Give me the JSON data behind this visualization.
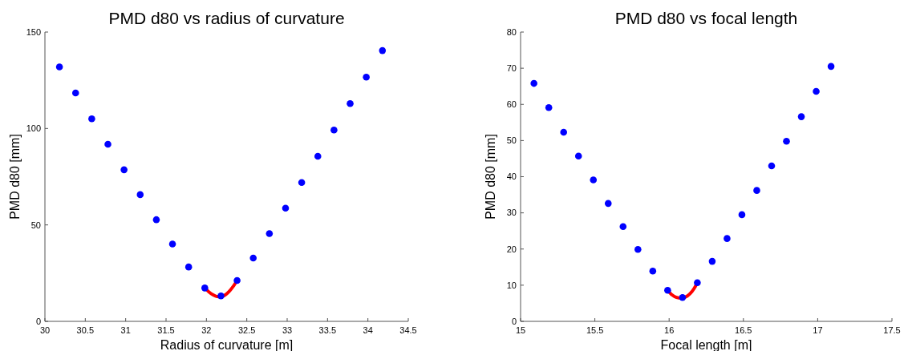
{
  "chart_data": [
    {
      "type": "scatter",
      "title": "PMD d80 vs radius of curvature",
      "xlabel": "Radius of curvature [m]",
      "ylabel": "PMD d80 [mm]",
      "xlim": [
        30,
        34.5
      ],
      "xticks": [
        30,
        30.5,
        31,
        31.5,
        32,
        32.5,
        33,
        33.5,
        34,
        34.5
      ],
      "ylim": [
        0,
        150
      ],
      "yticks": [
        0,
        50,
        100,
        150
      ],
      "grid": false,
      "marker": "circle",
      "series": [
        {
          "type": "scatter",
          "color": "#0000ff",
          "x": [
            30.18,
            30.38,
            30.58,
            30.78,
            30.98,
            31.18,
            31.38,
            31.58,
            31.78,
            31.98,
            32.18,
            32.38,
            32.58,
            32.78,
            32.98,
            33.18,
            33.38,
            33.58,
            33.78,
            33.98,
            34.18
          ],
          "values": [
            131.9,
            118.4,
            105,
            91.8,
            78.6,
            65.7,
            52.7,
            40.1,
            28.2,
            17.3,
            13.2,
            21.2,
            32.8,
            45.5,
            58.7,
            72,
            85.6,
            99.2,
            112.9,
            126.6,
            140.4
          ]
        },
        {
          "type": "line",
          "color": "#ff0000",
          "line_style": "solid",
          "marker": "none",
          "x": [
            31.98,
            32.03,
            32.08,
            32.13,
            32.18,
            32.23,
            32.28,
            32.33,
            32.38
          ],
          "values": [
            17.3,
            15.3,
            13.8,
            12.9,
            12.8,
            13.6,
            15.4,
            18,
            21.2
          ]
        }
      ]
    },
    {
      "type": "scatter",
      "title": "PMD d80 vs focal length",
      "xlabel": "Focal length [m]",
      "ylabel": "PMD d80 [mm]",
      "xlim": [
        15,
        17.5
      ],
      "xticks": [
        15,
        15.5,
        16,
        16.5,
        17,
        17.5
      ],
      "ylim": [
        0,
        80
      ],
      "yticks": [
        0,
        10,
        20,
        30,
        40,
        50,
        60,
        70,
        80
      ],
      "grid": false,
      "marker": "circle",
      "series": [
        {
          "type": "scatter",
          "color": "#0000ff",
          "x": [
            15.09,
            15.19,
            15.29,
            15.39,
            15.49,
            15.59,
            15.69,
            15.79,
            15.89,
            15.99,
            16.09,
            16.19,
            16.29,
            16.39,
            16.49,
            16.59,
            16.69,
            16.79,
            16.89,
            16.99,
            17.09
          ],
          "values": [
            65.8,
            59.1,
            52.3,
            45.7,
            39.1,
            32.6,
            26.2,
            19.9,
            13.9,
            8.6,
            6.6,
            10.7,
            16.6,
            22.9,
            29.5,
            36.2,
            43,
            49.8,
            56.6,
            63.6,
            70.5
          ]
        },
        {
          "type": "line",
          "color": "#ff0000",
          "line_style": "solid",
          "marker": "none",
          "x": [
            15.99,
            16.02,
            16.05,
            16.08,
            16.11,
            16.14,
            16.17,
            16.19
          ],
          "values": [
            8.6,
            7.3,
            6.6,
            6.4,
            6.7,
            7.6,
            9.2,
            10.7
          ]
        }
      ]
    }
  ]
}
